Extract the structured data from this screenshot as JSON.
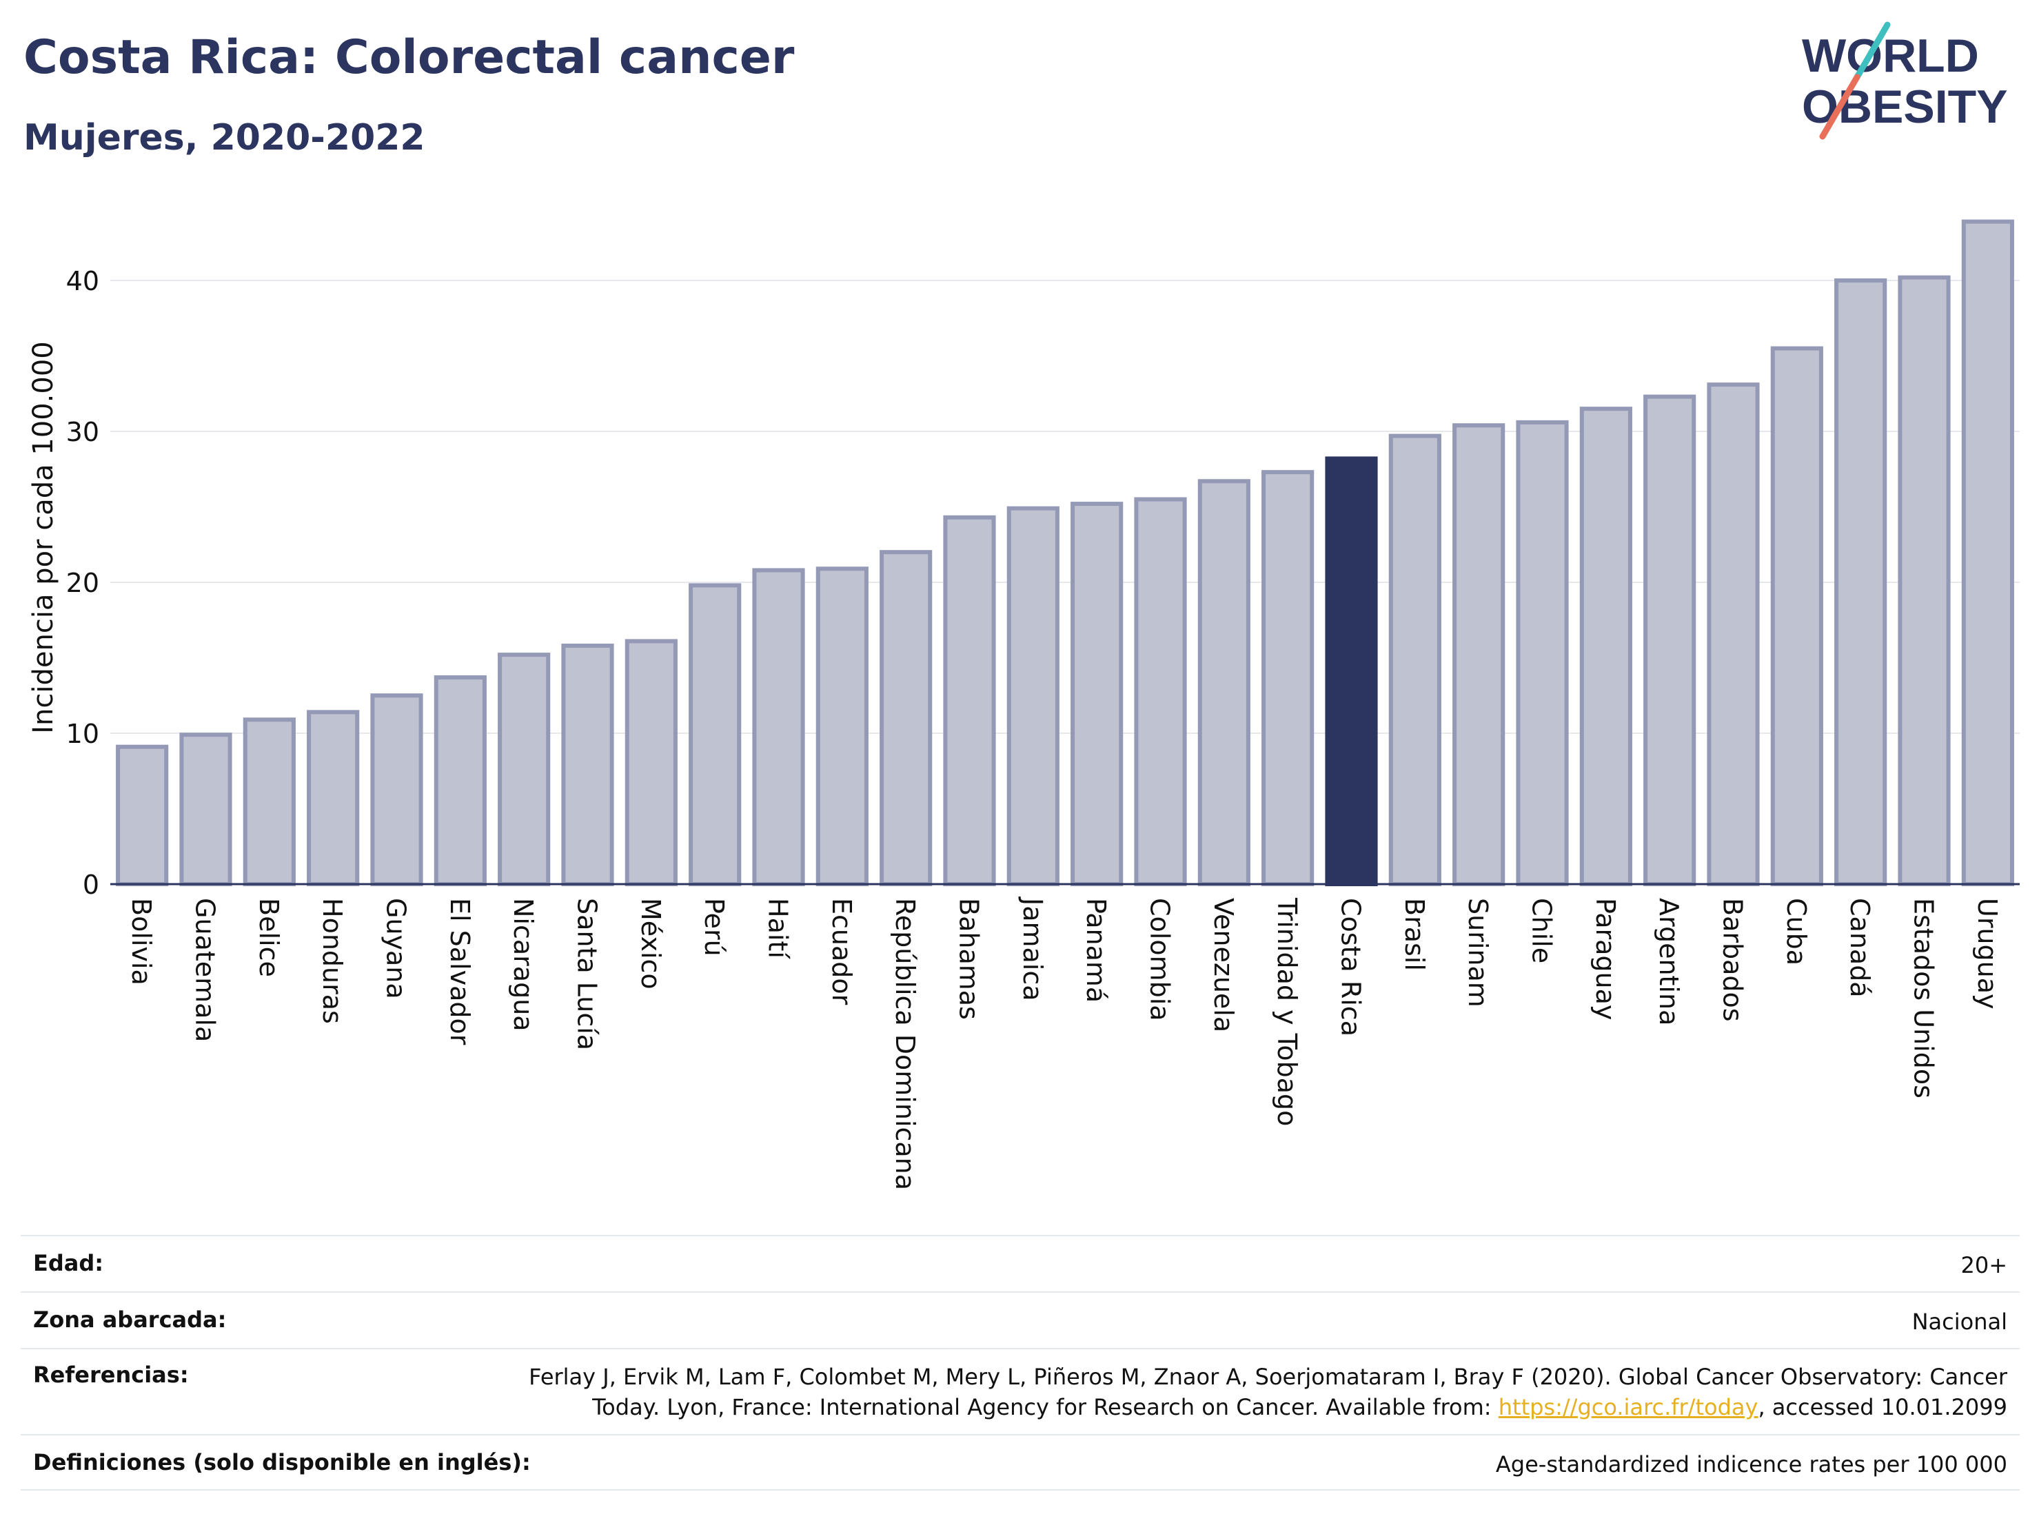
{
  "title": "Costa Rica: Colorectal cancer",
  "subtitle": "Mujeres, 2020-2022",
  "logo": {
    "line1": "WORLD",
    "line2": "OBESITY"
  },
  "colors": {
    "highlight": "#2b3560",
    "bar": "#bfc2d1",
    "bar_edge": "#9499b5",
    "text": "#2b3560",
    "link": "#e6b020"
  },
  "chart_data": {
    "type": "bar",
    "ylabel": "Incidencia por cada 100.000",
    "xlabel": "",
    "ylim": [
      0,
      45
    ],
    "yticks": [
      0,
      10,
      20,
      30,
      40
    ],
    "highlight": "Costa Rica",
    "grid": true,
    "categories": [
      "Bolivia",
      "Guatemala",
      "Belice",
      "Honduras",
      "Guyana",
      "El Salvador",
      "Nicaragua",
      "Santa Lucía",
      "México",
      "Perú",
      "Haití",
      "Ecuador",
      "República Dominicana",
      "Bahamas",
      "Jamaica",
      "Panamá",
      "Colombia",
      "Venezuela",
      "Trinidad y Tobago",
      "Costa Rica",
      "Brasil",
      "Surinam",
      "Chile",
      "Paraguay",
      "Argentina",
      "Barbados",
      "Cuba",
      "Canadá",
      "Estados Unidos",
      "Uruguay"
    ],
    "values": [
      9.1,
      9.9,
      10.9,
      11.4,
      12.5,
      13.7,
      15.2,
      15.8,
      16.1,
      19.8,
      20.8,
      20.9,
      22.0,
      24.3,
      24.9,
      25.2,
      25.5,
      26.7,
      27.3,
      28.2,
      29.7,
      30.4,
      30.6,
      31.5,
      32.3,
      33.1,
      35.5,
      40.0,
      40.2,
      43.9
    ]
  },
  "meta": {
    "age_label": "Edad:",
    "age_value": "20+",
    "zone_label": "Zona abarcada:",
    "zone_value": "Nacional",
    "ref_label": "Referencias:",
    "ref_line1": "Ferlay J, Ervik M, Lam F, Colombet M, Mery L, Piñeros M, Znaor A, Soerjomataram I, Bray F (2020). Global Cancer Observatory: Cancer",
    "ref_line2_pre": "Today. Lyon, France: International Agency for Research on Cancer. Available from: ",
    "ref_link": "https://gco.iarc.fr/today",
    "ref_line2_post": ", accessed 10.01.2099",
    "def_label": "Definiciones (solo disponible en inglés):",
    "def_value": "Age-standardized indicence rates per 100 000"
  }
}
